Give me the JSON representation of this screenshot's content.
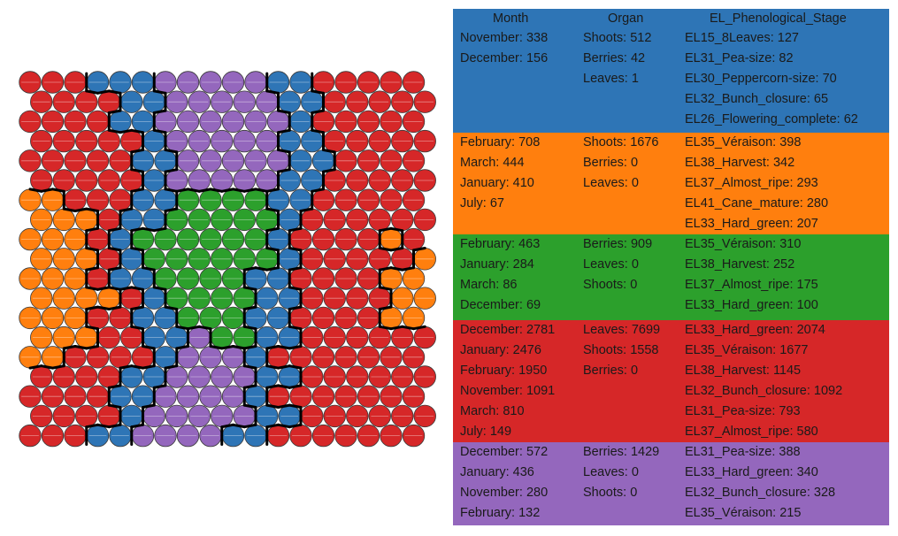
{
  "headers": {
    "month": "Month",
    "organ": "Organ",
    "stage": "EL_Phenological_Stage"
  },
  "header_color": "#2e75b6",
  "clusters": [
    {
      "name": "blue",
      "color": "#2e75b6",
      "month": [
        "November: 338",
        "December: 156"
      ],
      "organ": [
        "Shoots: 512",
        "Berries: 42",
        "Leaves: 1"
      ],
      "stage": [
        "EL15_8Leaves: 127",
        "EL31_Pea-size: 82",
        "EL30_Peppercorn-size: 70",
        "EL32_Bunch_closure: 65",
        "EL26_Flowering_complete: 62"
      ]
    },
    {
      "name": "orange",
      "color": "#ff7f0e",
      "month": [
        "February: 708",
        "March: 444",
        "January: 410",
        "July: 67"
      ],
      "organ": [
        "Shoots: 1676",
        "Berries: 0",
        "Leaves: 0"
      ],
      "stage": [
        "EL35_Véraison: 398",
        "EL38_Harvest: 342",
        "EL37_Almost_ripe: 293",
        "EL41_Cane_mature: 280",
        "EL33_Hard_green: 207"
      ]
    },
    {
      "name": "green",
      "color": "#2ca02c",
      "month": [
        "February: 463",
        "January: 284",
        "March: 86",
        "December: 69"
      ],
      "organ": [
        "Berries: 909",
        "Leaves: 0",
        "Shoots: 0"
      ],
      "stage": [
        "EL35_Véraison: 310",
        "EL38_Harvest: 252",
        "EL37_Almost_ripe: 175",
        "EL33_Hard_green: 100"
      ]
    },
    {
      "name": "red",
      "color": "#d62728",
      "month": [
        "December: 2781",
        "January: 2476",
        "February: 1950",
        "November: 1091",
        "March: 810",
        "July: 149"
      ],
      "organ": [
        "Leaves: 7699",
        "Shoots: 1558",
        "Berries: 0"
      ],
      "stage": [
        "EL33_Hard_green: 2074",
        "EL35_Véraison: 1677",
        "EL38_Harvest: 1145",
        "EL32_Bunch_closure: 1092",
        "EL31_Pea-size: 793",
        "EL37_Almost_ripe: 580"
      ]
    },
    {
      "name": "purple",
      "color": "#9467bd",
      "month": [
        "December: 572",
        "January: 436",
        "November: 280",
        "February: 132"
      ],
      "organ": [
        "Berries: 1429",
        "Leaves: 0",
        "Shoots: 0"
      ],
      "stage": [
        "EL31_Pea-size: 388",
        "EL33_Hard_green: 340",
        "EL32_Bunch_closure: 328",
        "EL35_Véraison: 215"
      ]
    }
  ],
  "chart_data": {
    "type": "heatmap",
    "description_kind": "self-organizing map hexagonal grid with 5 clusters",
    "rows": 19,
    "cols": 18,
    "legend": {
      "B": "blue",
      "O": "orange",
      "G": "green",
      "R": "red",
      "P": "purple"
    },
    "colors": {
      "R": "#d62728",
      "B": "#2e75b6",
      "P": "#9467bd",
      "G": "#2ca02c",
      "O": "#ff7f0e"
    },
    "grid": [
      "RRRBBBPPPPPBBRRRRR",
      "RRRRBBPPPPPBBRRRRR",
      "RRRRBBPPPPPPBRRRRR",
      "RRRRRBPPPPPBBRRRRR",
      "RRRRRBBPPPPPBBRRRR",
      "RRRRRBPPPPPBBRRRRR",
      "OORRRBBGGGGBBRRRRR",
      "OOORBBGGGGGBRRRRRR",
      "OOORBGGGGGGBRRRROR",
      "OOORBGGGGGGBRRRRRO",
      "OOORBBGGGGBBRRRROO",
      "OOOORBGGGGBBRRRROO",
      "OOORRBBGGGBBRRRROO",
      "OOORRBBPGGBBRRRRRR",
      "OORRRRBPPPBRRRRRRR",
      "RRRRBBPPPPBBRRRRRR",
      "RRRRBBPPPPBRRRRRRR",
      "RRRRBPPPPPBBRRRRRR",
      "RRRBBPPPPBBRRRRRRR"
    ]
  }
}
